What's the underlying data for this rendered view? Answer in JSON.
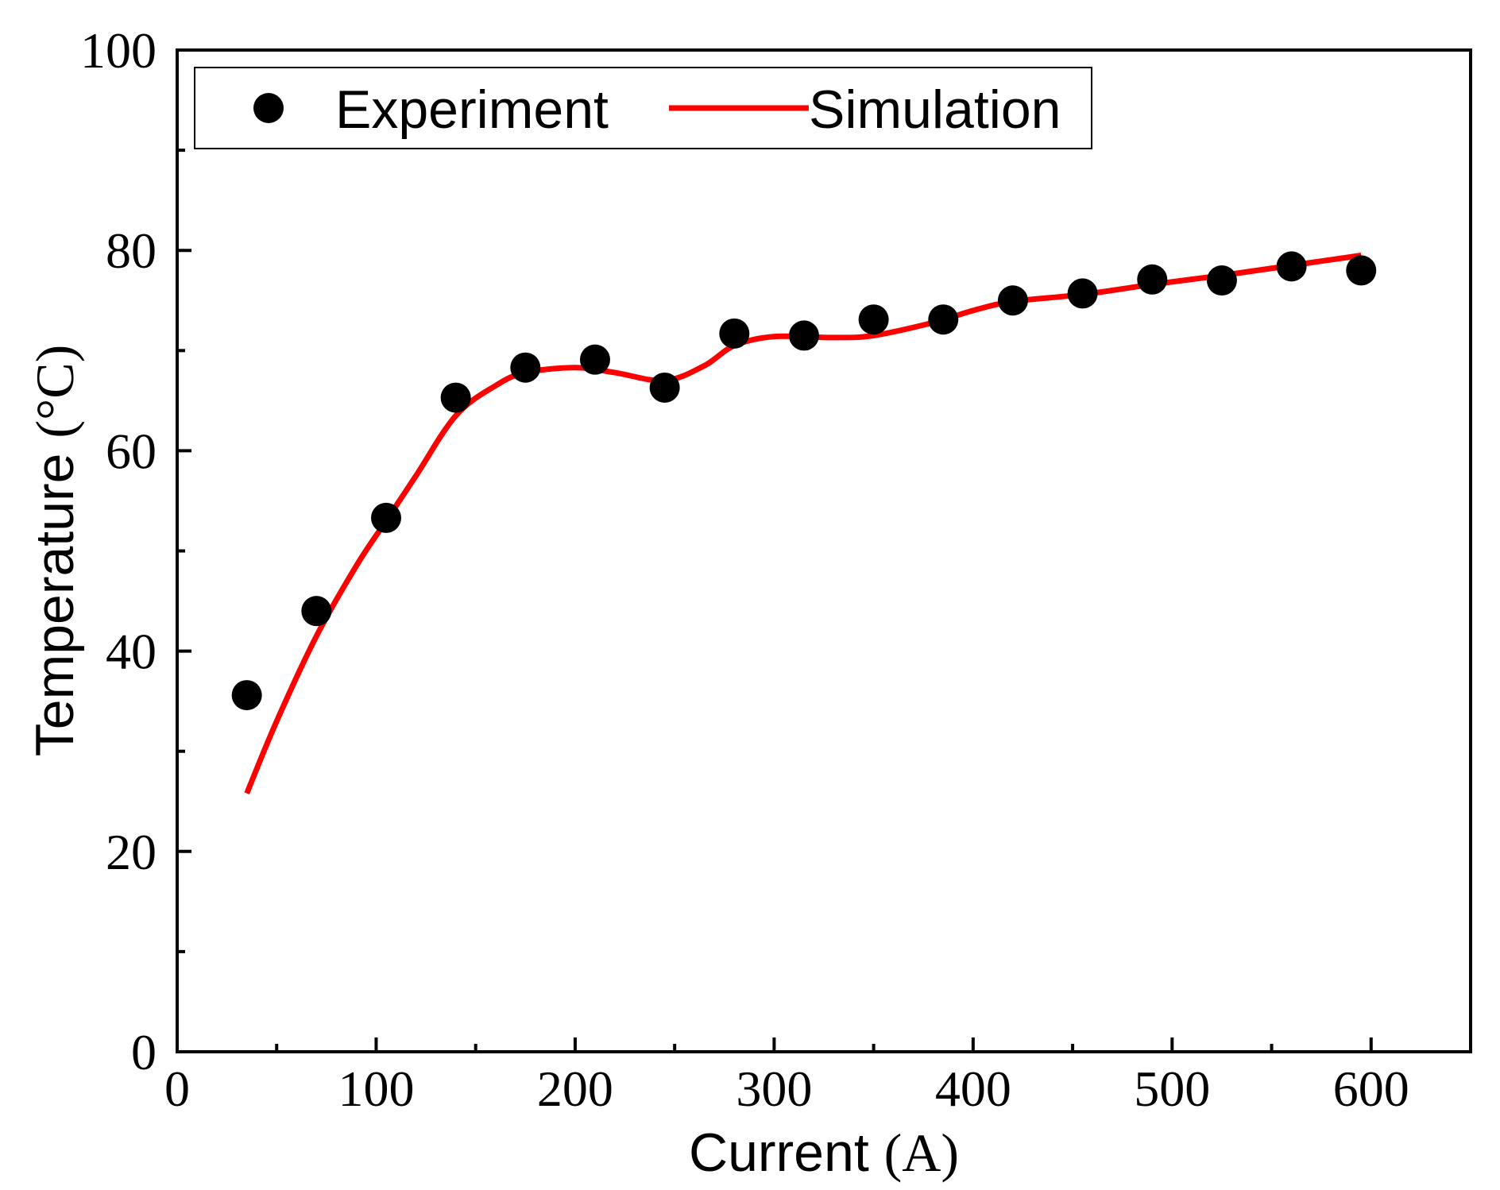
{
  "chart_data": {
    "type": "scatter",
    "title": "",
    "xlabel": "Current",
    "xlabel_unit": "(A)",
    "ylabel": "Temperature",
    "ylabel_unit": "(°C)",
    "xlim": [
      0,
      650
    ],
    "ylim": [
      0,
      100
    ],
    "xticks": [
      0,
      100,
      200,
      300,
      400,
      500,
      600
    ],
    "xticks_minor": [
      50,
      150,
      250,
      350,
      450,
      550
    ],
    "yticks": [
      0,
      20,
      40,
      60,
      80,
      100
    ],
    "yticks_minor": [
      10,
      30,
      50,
      70,
      90
    ],
    "grid": false,
    "legend_position": "top-left",
    "series": [
      {
        "name": "Experiment",
        "kind": "scatter",
        "color": "#000000",
        "x": [
          35,
          70,
          105,
          140,
          175,
          210,
          245,
          280,
          315,
          350,
          385,
          420,
          455,
          490,
          525,
          560,
          595
        ],
        "y": [
          35.6,
          44.0,
          53.3,
          65.3,
          68.3,
          69.1,
          66.3,
          71.7,
          71.5,
          73.1,
          73.1,
          75.0,
          75.7,
          77.1,
          77.0,
          78.4,
          78.0
        ]
      },
      {
        "name": "Simulation",
        "kind": "line",
        "color": "#ff0000",
        "x": [
          35,
          50,
          70,
          90,
          105,
          120,
          140,
          160,
          175,
          200,
          220,
          245,
          265,
          280,
          300,
          330,
          350,
          380,
          400,
          420,
          455,
          490,
          525,
          560,
          595
        ],
        "y": [
          25.8,
          33.0,
          41.5,
          48.5,
          53.0,
          57.5,
          63.5,
          66.5,
          67.8,
          68.3,
          67.8,
          67.0,
          68.5,
          70.5,
          71.4,
          71.3,
          71.5,
          72.8,
          74.0,
          74.9,
          75.6,
          76.6,
          77.5,
          78.5,
          79.5
        ]
      }
    ]
  }
}
